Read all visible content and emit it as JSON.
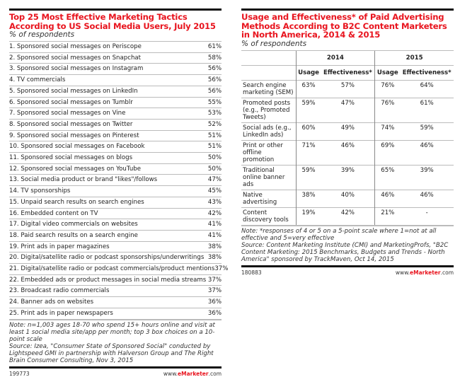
{
  "chart_data": [
    {
      "type": "table",
      "title": "Top 25 Most Effective Marketing Tactics According to US Social Media Users, July 2015",
      "subtitle": "% of respondents",
      "rows": [
        [
          "1. Sponsored social messages on Periscope",
          "61%"
        ],
        [
          "2. Sponsored social messages on Snapchat",
          "58%"
        ],
        [
          "3. Sponsored social messages on Instagram",
          "56%"
        ],
        [
          "4. TV commercials",
          "56%"
        ],
        [
          "5. Sponsored social messages on LinkedIn",
          "56%"
        ],
        [
          "6. Sponsored social messages on Tumblr",
          "55%"
        ],
        [
          "7. Sponsored social messages on Vine",
          "53%"
        ],
        [
          "8. Sponsored social messages on Twitter",
          "52%"
        ],
        [
          "9. Sponsored social messages on Pinterest",
          "51%"
        ],
        [
          "10. Sponsored social messages on Facebook",
          "51%"
        ],
        [
          "11. Sponsored social messages on blogs",
          "50%"
        ],
        [
          "12. Sponsored social messages on YouTube",
          "50%"
        ],
        [
          "13. Social media product or brand \"likes\"/follows",
          "47%"
        ],
        [
          "14. TV sponsorships",
          "45%"
        ],
        [
          "15. Unpaid search results on search engines",
          "43%"
        ],
        [
          "16. Embedded content on TV",
          "42%"
        ],
        [
          "17. Digital video commercials on websites",
          "41%"
        ],
        [
          "18. Paid search results on a search engine",
          "41%"
        ],
        [
          "19. Print ads in paper magazines",
          "38%"
        ],
        [
          "20. Digital/satellite radio or podcast sponsorships/underwritings",
          "38%"
        ],
        [
          "21. Digital/satellite radio or podcast commercials/product mentions",
          "37%"
        ],
        [
          "22. Embedded ads or product messages in social media streams",
          "37%"
        ],
        [
          "23. Broadcast radio commercials",
          "37%"
        ],
        [
          "24. Banner ads on websites",
          "36%"
        ],
        [
          "25. Print ads in paper newspapers",
          "36%"
        ]
      ],
      "note": "Note: n=1,003 ages 18-70 who spend 15+ hours online and visit at least 1 social media site/app per month; top 3 box choices on a 10-point scale",
      "source": "Source: Izea, \"Consumer State of Sponsored Social\" conducted by Lightspeed GMI in partnership with Halverson Group and The Right Brain Consumer Consulting, Nov 3, 2015",
      "id": "199773",
      "site_pre": "www.",
      "site_brand": "eMarketer",
      "site_post": ".com"
    },
    {
      "type": "table",
      "title": "Usage and Effectiveness* of Paid Advertising Methods According to B2C Content Marketers in North America, 2014 & 2015",
      "subtitle": "% of respondents",
      "years": [
        "2014",
        "2015"
      ],
      "columns": [
        "Usage",
        "Effectiveness*",
        "Usage",
        "Effectiveness*"
      ],
      "rows": [
        [
          "Search engine marketing (SEM)",
          "63%",
          "57%",
          "76%",
          "64%"
        ],
        [
          "Promoted posts (e.g., Promoted Tweets)",
          "59%",
          "47%",
          "76%",
          "61%"
        ],
        [
          "Social ads (e.g., LinkedIn ads)",
          "60%",
          "49%",
          "74%",
          "59%"
        ],
        [
          "Print or other offline promotion",
          "71%",
          "46%",
          "69%",
          "46%"
        ],
        [
          "Traditional online banner ads",
          "59%",
          "39%",
          "65%",
          "39%"
        ],
        [
          "Native advertising",
          "38%",
          "40%",
          "46%",
          "46%"
        ],
        [
          "Content discovery tools",
          "19%",
          "42%",
          "21%",
          "-"
        ]
      ],
      "note": "Note: *responses of 4 or 5 on a 5-point scale where 1=not at all effective and 5=very effective",
      "source": "Source: Content Marketing Institute (CMI) and MarketingProfs, \"B2C Content Marketing: 2015 Benchmarks, Budgets and Trends - North America\" sponsored by TrackMaven, Oct 14, 2015",
      "id": "180883",
      "site_pre": "www.",
      "site_brand": "eMarketer",
      "site_post": ".com"
    }
  ]
}
